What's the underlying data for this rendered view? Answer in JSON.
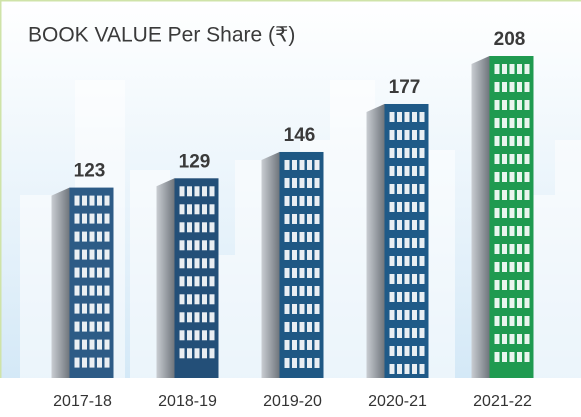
{
  "chart_data": {
    "type": "bar",
    "title": "BOOK VALUE Per Share (₹)",
    "categories": [
      "2017-18",
      "2018-19",
      "2019-20",
      "2020-21",
      "2021-22"
    ],
    "values": [
      123,
      129,
      146,
      177,
      208
    ],
    "colors": [
      "#2d5b86",
      "#234f78",
      "#1f5884",
      "#1f5a88",
      "#1f9a50"
    ]
  }
}
